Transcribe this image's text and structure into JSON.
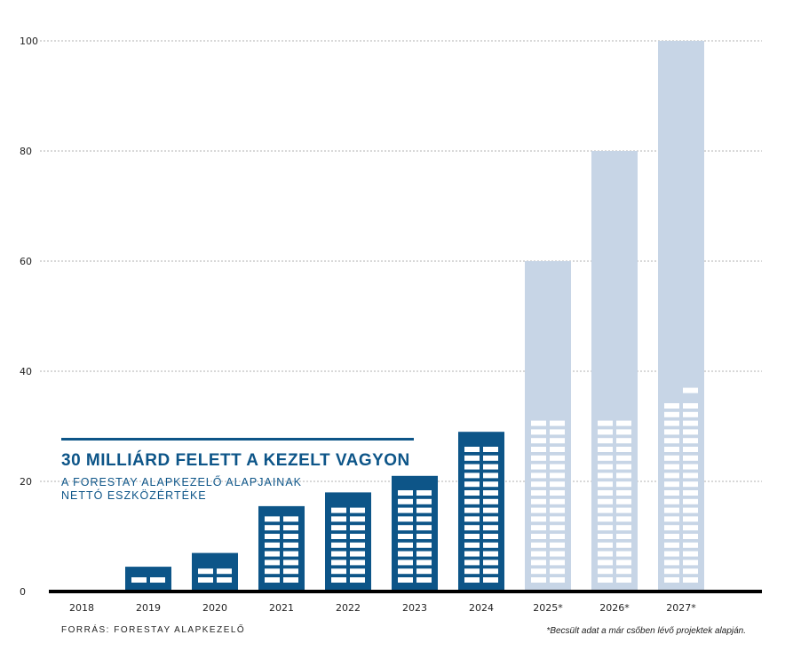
{
  "header": {
    "title": "30 MILLIÁRD FELETT A KEZELT VAGYON",
    "subtitle_line1": "A FORESTAY ALAPKEZELŐ ALAPJAINAK",
    "subtitle_line2": "NETTÓ ESZKÖZÉRTÉKE"
  },
  "footer": {
    "source": "FORRÁS: FORESTAY ALAPKEZELŐ",
    "footnote": "*Becsült adat a már csőben lévő projektek alapján."
  },
  "colors": {
    "actual": "#0d5588",
    "estimate": "#c7d5e6",
    "axis": "#000000",
    "grid": "#999999"
  },
  "chart_data": {
    "type": "bar",
    "categories": [
      "2018",
      "2019",
      "2020",
      "2021",
      "2022",
      "2023",
      "2024",
      "2025*",
      "2026*",
      "2027*"
    ],
    "values": [
      0,
      4.5,
      7,
      15.5,
      18,
      21,
      29,
      60,
      80,
      100
    ],
    "estimated": [
      false,
      false,
      false,
      false,
      false,
      false,
      false,
      true,
      true,
      true
    ],
    "ylim": [
      0,
      100
    ],
    "yticks": [
      0,
      20,
      40,
      60,
      80,
      100
    ],
    "grid": true,
    "legend": "none"
  }
}
